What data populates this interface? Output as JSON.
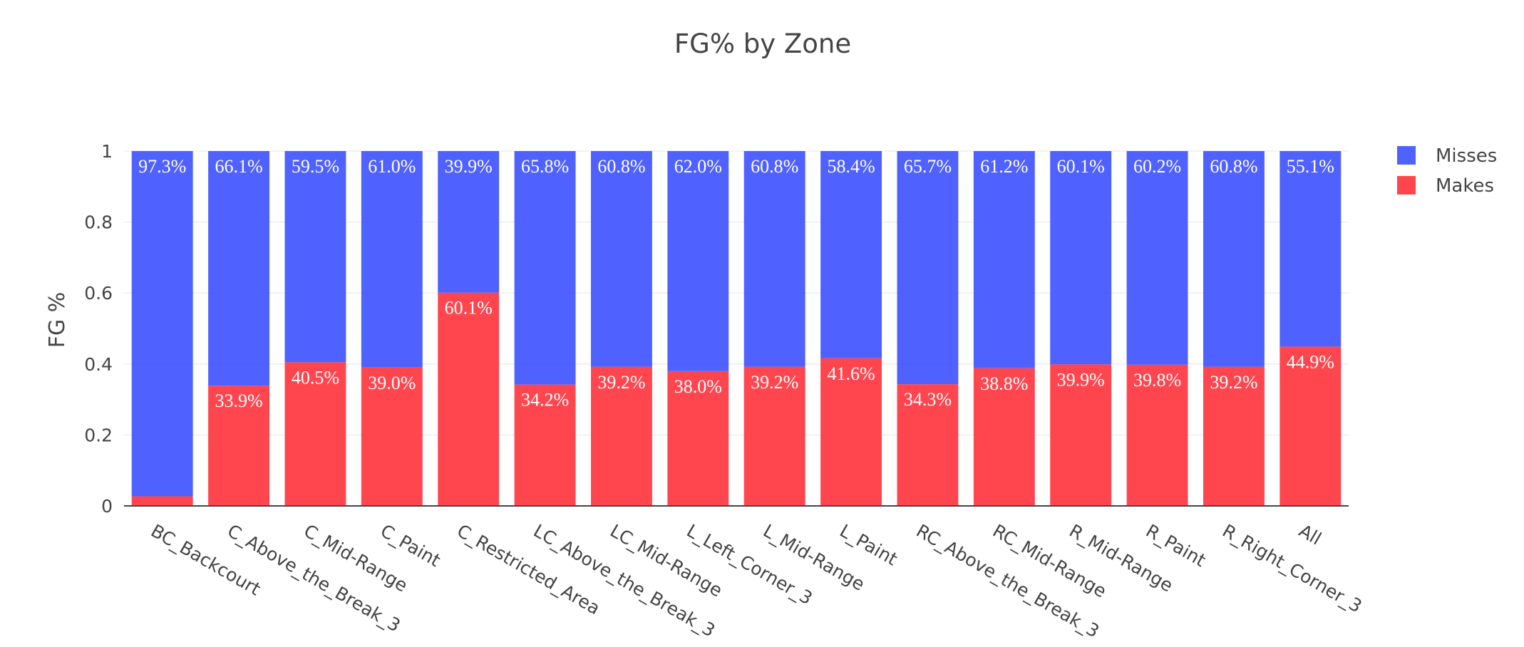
{
  "chart_data": {
    "type": "bar",
    "stacked": true,
    "title": "FG% by Zone",
    "xlabel": "",
    "ylabel": "FG %",
    "ylim": [
      0,
      1
    ],
    "yticks": [
      "0",
      "0.2",
      "0.4",
      "0.6",
      "0.8",
      "1"
    ],
    "ytick_values": [
      0,
      0.2,
      0.4,
      0.6,
      0.8,
      1
    ],
    "categories": [
      "BC_Backcourt",
      "C_Above_the_Break_3",
      "C_Mid-Range",
      "C_Paint",
      "C_Restricted_Area",
      "LC_Above_the_Break_3",
      "LC_Mid-Range",
      "L_Left_Corner_3",
      "L_Mid-Range",
      "L_Paint",
      "RC_Above_the_Break_3",
      "RC_Mid-Range",
      "R_Mid-Range",
      "R_Paint",
      "R_Right_Corner_3",
      "All"
    ],
    "series": [
      {
        "name": "Makes",
        "color": "#ff323c",
        "values": [
          0.027,
          0.339,
          0.405,
          0.39,
          0.601,
          0.342,
          0.392,
          0.38,
          0.392,
          0.416,
          0.343,
          0.388,
          0.399,
          0.398,
          0.392,
          0.449
        ],
        "labels": [
          "",
          "33.9%",
          "40.5%",
          "39.0%",
          "60.1%",
          "34.2%",
          "39.2%",
          "38.0%",
          "39.2%",
          "41.6%",
          "34.3%",
          "38.8%",
          "39.9%",
          "39.8%",
          "39.2%",
          "44.9%"
        ]
      },
      {
        "name": "Misses",
        "color": "#3c50ff",
        "values": [
          0.973,
          0.661,
          0.595,
          0.61,
          0.399,
          0.658,
          0.608,
          0.62,
          0.608,
          0.584,
          0.657,
          0.612,
          0.601,
          0.602,
          0.608,
          0.551
        ],
        "labels": [
          "97.3%",
          "66.1%",
          "59.5%",
          "61.0%",
          "39.9%",
          "65.8%",
          "60.8%",
          "62.0%",
          "60.8%",
          "58.4%",
          "65.7%",
          "61.2%",
          "60.1%",
          "60.2%",
          "60.8%",
          "55.1%"
        ]
      }
    ],
    "legend": {
      "position": "top-right",
      "entries": [
        {
          "name": "Misses",
          "color": "#3c50ff"
        },
        {
          "name": "Makes",
          "color": "#ff323c"
        }
      ]
    },
    "grid": true
  }
}
